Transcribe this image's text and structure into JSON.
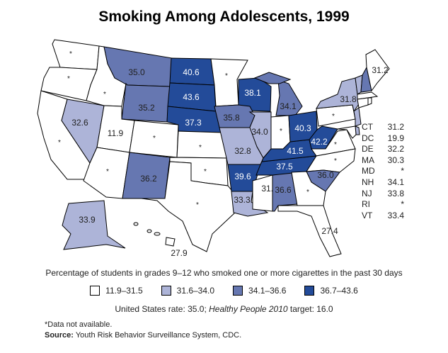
{
  "title": "Smoking Among Adolescents, 1999",
  "chart_data": {
    "type": "choropleth",
    "title": "Smoking Among Adolescents, 1999",
    "caption": "Percentage of students in grades 9–12 who smoked one or more cigarettes in the past 30 days",
    "missing_symbol": "*",
    "bins": [
      {
        "label": "11.9–31.5",
        "min": 11.9,
        "max": 31.5,
        "color": "#ffffff"
      },
      {
        "label": "31.6–34.0",
        "min": 31.6,
        "max": 34.0,
        "color": "#adb4d8"
      },
      {
        "label": "34.1–36.6",
        "min": 34.1,
        "max": 36.6,
        "color": "#6677b1"
      },
      {
        "label": "36.7–43.6",
        "min": 36.7,
        "max": 43.6,
        "color": "#234b99"
      }
    ],
    "states": {
      "WA": null,
      "OR": null,
      "CA": null,
      "NV": 32.6,
      "ID": null,
      "MT": 35.0,
      "WY": 35.2,
      "UT": 11.9,
      "CO": null,
      "AZ": null,
      "NM": 36.2,
      "ND": 40.6,
      "SD": 43.6,
      "NE": 37.3,
      "KS": null,
      "OK": null,
      "TX": null,
      "MN": null,
      "IA": 35.8,
      "MO": 32.8,
      "AR": 39.6,
      "LA": 33.3,
      "WI": 38.1,
      "IL": 34.0,
      "MI": 34.1,
      "IN": null,
      "OH": 40.3,
      "KY": 41.5,
      "TN": 37.5,
      "MS": 31.5,
      "AL": 36.6,
      "GA": null,
      "FL": 27.4,
      "SC": 36.0,
      "NC": null,
      "VA": null,
      "WV": 42.2,
      "PA": null,
      "NY": 31.8,
      "ME": 31.2,
      "AK": 33.9,
      "HI": 27.9,
      "VT": 33.4,
      "NH": 34.1,
      "MA": 30.3,
      "CT": 31.2,
      "RI": null,
      "NJ": 33.8,
      "DE": 32.2,
      "MD": null,
      "DC": 19.9
    },
    "small_states_table": [
      {
        "state": "CT",
        "value": "31.2"
      },
      {
        "state": "DC",
        "value": "19.9"
      },
      {
        "state": "DE",
        "value": "32.2"
      },
      {
        "state": "MA",
        "value": "30.3"
      },
      {
        "state": "MD",
        "value": "*"
      },
      {
        "state": "NH",
        "value": "34.1"
      },
      {
        "state": "NJ",
        "value": "33.8"
      },
      {
        "state": "RI",
        "value": "*"
      },
      {
        "state": "VT",
        "value": "33.4"
      }
    ]
  },
  "rate": {
    "prefix": "United States rate: 35.0; ",
    "italic": "Healthy People 2010",
    "suffix": " target: 16.0"
  },
  "footnote": "*Data not available.",
  "source": {
    "label": "Source:",
    "text": " Youth Risk Behavior Surveillance System, CDC."
  }
}
